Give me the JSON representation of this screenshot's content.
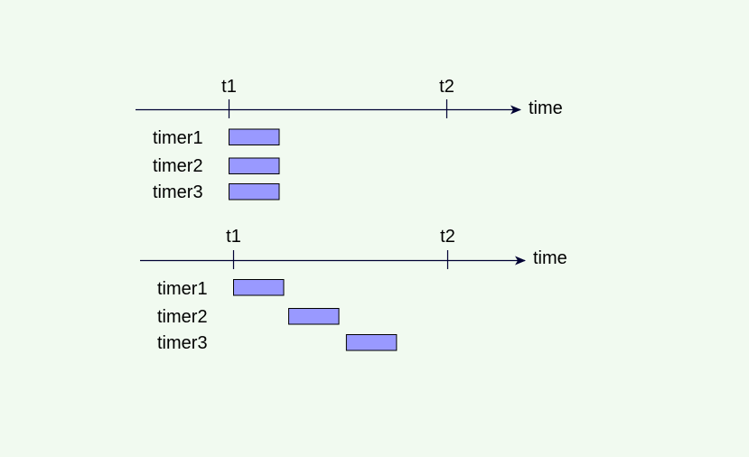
{
  "diagrams": [
    {
      "axis_label": "time",
      "ticks": [
        {
          "label": "t1"
        },
        {
          "label": "t2"
        }
      ],
      "timers": [
        {
          "label": "timer1",
          "start": 0,
          "end": 1
        },
        {
          "label": "timer2",
          "start": 0,
          "end": 1
        },
        {
          "label": "timer3",
          "start": 0,
          "end": 1
        }
      ]
    },
    {
      "axis_label": "time",
      "ticks": [
        {
          "label": "t1"
        },
        {
          "label": "t2"
        }
      ],
      "timers": [
        {
          "label": "timer1",
          "start": 0,
          "end": 1
        },
        {
          "label": "timer2",
          "start": 1.1,
          "end": 2.1
        },
        {
          "label": "timer3",
          "start": 2.25,
          "end": 3.25
        }
      ]
    }
  ],
  "colors": {
    "bar_fill": "#9999ff",
    "bar_stroke": "#000000",
    "axis": "#000033",
    "background": "#f1faf0"
  }
}
